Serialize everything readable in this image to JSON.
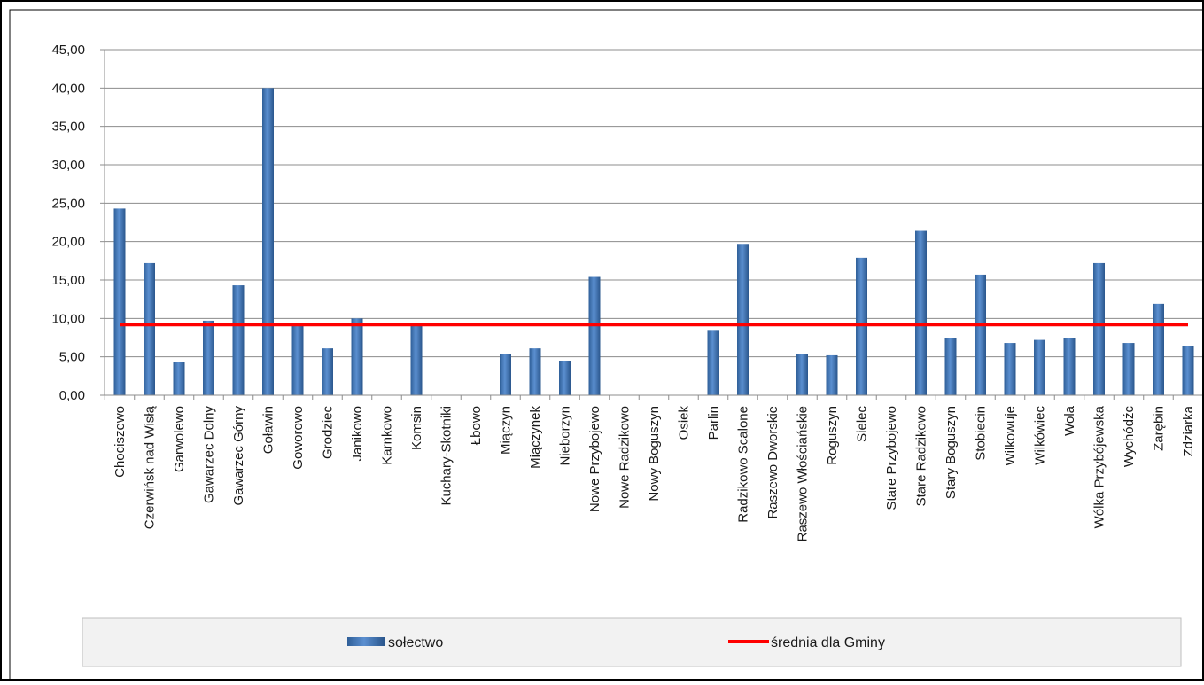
{
  "chart_data": {
    "type": "bar",
    "categories": [
      "Chociszewo",
      "Czerwińsk nad Wisłą",
      "Garwolewo",
      "Gawarzec Dolny",
      "Gawarzec Górny",
      "Goławin",
      "Goworowo",
      "Grodziec",
      "Janikowo",
      "Karnkowo",
      "Komsin",
      "Kuchary-Skotniki",
      "Łbowo",
      "Miączyn",
      "Miączynek",
      "Nieborzyn",
      "Nowe Przybojewo",
      "Nowe Radzikowo",
      "Nowy Boguszyn",
      "Osiek",
      "Parlin",
      "Radzikowo Scalone",
      "Raszewo Dworskie",
      "Raszewo Włościańskie",
      "Roguszyn",
      "Sielec",
      "Stare Przybojewo",
      "Stare Radzikowo",
      "Stary Boguszyn",
      "Stobiecin",
      "Wilkowuje",
      "Wilkówiec",
      "Wola",
      "Wólka Przybójewska",
      "Wychódźc",
      "Zarębin",
      "Zdziarka"
    ],
    "series": [
      {
        "name": "sołectwo",
        "kind": "bar",
        "color": "#4f81bd",
        "values": [
          24.3,
          17.2,
          4.3,
          9.7,
          14.3,
          40.0,
          9.0,
          6.1,
          10.0,
          0,
          9.0,
          0,
          0,
          5.4,
          6.1,
          4.5,
          15.4,
          0,
          0,
          0,
          8.5,
          19.7,
          0,
          5.4,
          5.2,
          17.9,
          0,
          21.4,
          7.5,
          15.7,
          6.8,
          7.2,
          7.5,
          17.2,
          6.8,
          11.9,
          6.4
        ]
      },
      {
        "name": "średnia dla Gminy",
        "kind": "line",
        "color": "#ff0000",
        "value": 9.2
      }
    ],
    "yticks": [
      "0,00",
      "5,00",
      "10,00",
      "15,00",
      "20,00",
      "25,00",
      "30,00",
      "35,00",
      "40,00",
      "45,00"
    ],
    "ylim": [
      0,
      45
    ],
    "grid": true,
    "legend": "bottom",
    "title": "",
    "xlabel": "",
    "ylabel": ""
  }
}
